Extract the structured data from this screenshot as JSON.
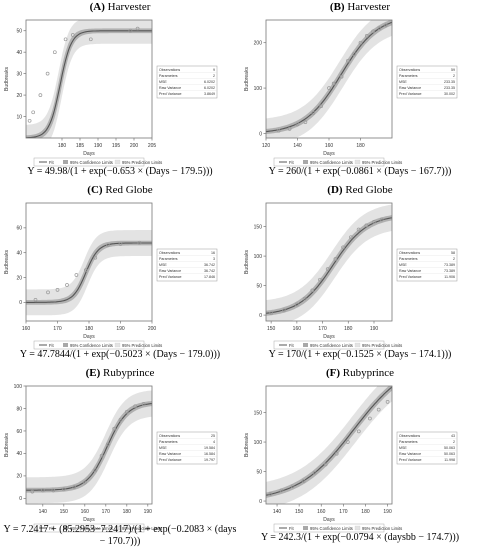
{
  "legend_labels": {
    "fit": "Fit",
    "conf": "95% Confidence Limits",
    "pred": "95% Prediction Limits"
  },
  "stats_labels": [
    "Observations",
    "Parameters",
    "MSE",
    "Raw Variance",
    "Pred Variance"
  ],
  "colors": {
    "band_pred": "#e3e3e3",
    "band_conf": "#a8a8a8",
    "fit": "#555555",
    "points": "#9a9a9a",
    "axis": "#777777"
  },
  "chart_data": [
    {
      "type": "line",
      "letter": "(A)",
      "title": "Harvester",
      "xlabel": "Days",
      "ylabel": "Budbreaks",
      "xlim": [
        170,
        205
      ],
      "ylim": [
        0,
        55
      ],
      "xticks": [
        180,
        185,
        190,
        195,
        200,
        205
      ],
      "yticks": [
        10,
        20,
        30,
        40,
        50
      ],
      "model": "logistic",
      "params": {
        "c": 0,
        "K": 49.98,
        "r": 0.653,
        "x0": 179.5
      },
      "points": [
        [
          171,
          8
        ],
        [
          172,
          12
        ],
        [
          174,
          20
        ],
        [
          176,
          30
        ],
        [
          178,
          40
        ],
        [
          181,
          46
        ],
        [
          183,
          48
        ],
        [
          188,
          46
        ],
        [
          199,
          50
        ],
        [
          201,
          51
        ]
      ],
      "stats": [
        "9",
        "2",
        "6.0202",
        "6.0202",
        "3.8649"
      ],
      "equation": "Y = 49.98/(1 + exp(−0.653 × (Days − 179.5)))"
    },
    {
      "type": "line",
      "letter": "(B)",
      "title": "Harvester",
      "xlabel": "Days",
      "ylabel": "Budbreaks",
      "xlim": [
        120,
        200
      ],
      "ylim": [
        -10,
        250
      ],
      "xticks": [
        120,
        140,
        160,
        180
      ],
      "yticks": [
        0,
        100,
        200
      ],
      "model": "logistic",
      "params": {
        "c": 0,
        "K": 260,
        "r": 0.0861,
        "x0": 167.7
      },
      "points": [
        [
          128,
          6
        ],
        [
          135,
          10
        ],
        [
          140,
          20
        ],
        [
          145,
          25
        ],
        [
          150,
          45
        ],
        [
          155,
          60
        ],
        [
          160,
          100
        ],
        [
          163,
          110
        ],
        [
          168,
          125
        ],
        [
          172,
          160
        ],
        [
          176,
          175
        ],
        [
          180,
          200
        ],
        [
          184,
          215
        ],
        [
          188,
          225
        ],
        [
          192,
          232
        ],
        [
          196,
          238
        ]
      ],
      "stats": [
        "59",
        "2",
        "233.35",
        "233.35",
        "30.002"
      ],
      "equation": "Y = 260/(1 + exp(−0.0861 × (Days − 167.7)))"
    },
    {
      "type": "line",
      "letter": "(C)",
      "title": "Red Globe",
      "xlabel": "Days",
      "ylabel": "Budbreaks",
      "xlim": [
        160,
        200
      ],
      "ylim": [
        -15,
        80
      ],
      "xticks": [
        160,
        170,
        180,
        190,
        200
      ],
      "yticks": [
        0,
        20,
        40,
        60
      ],
      "model": "logistic",
      "params": {
        "c": 0,
        "K": 47.7844,
        "r": 0.5023,
        "x0": 179.0
      },
      "points": [
        [
          163,
          2
        ],
        [
          167,
          8
        ],
        [
          170,
          10
        ],
        [
          173,
          14
        ],
        [
          176,
          22
        ],
        [
          179,
          26
        ],
        [
          182,
          36
        ],
        [
          186,
          46
        ],
        [
          190,
          47
        ],
        [
          196,
          48
        ]
      ],
      "stats": [
        "16",
        "3",
        "36.742",
        "36.742",
        "17.846"
      ],
      "equation": "Y = 47.7844/(1 + exp(−0.5023 × (Days − 179.0)))"
    },
    {
      "type": "line",
      "letter": "(D)",
      "title": "Red Globe",
      "xlabel": "Days",
      "ylabel": "Budbreaks",
      "xlim": [
        148,
        197
      ],
      "ylim": [
        -10,
        190
      ],
      "xticks": [
        150,
        160,
        170,
        180,
        190
      ],
      "yticks": [
        0,
        50,
        100,
        150
      ],
      "model": "logistic",
      "params": {
        "c": 0,
        "K": 170,
        "r": 0.1525,
        "x0": 174.1
      },
      "points": [
        [
          150,
          3
        ],
        [
          155,
          8
        ],
        [
          160,
          18
        ],
        [
          163,
          28
        ],
        [
          166,
          42
        ],
        [
          169,
          60
        ],
        [
          172,
          78
        ],
        [
          175,
          95
        ],
        [
          178,
          115
        ],
        [
          181,
          132
        ],
        [
          184,
          145
        ],
        [
          187,
          152
        ],
        [
          190,
          158
        ],
        [
          193,
          162
        ]
      ],
      "stats": [
        "58",
        "2",
        "73.389",
        "73.389",
        "11.906"
      ],
      "equation": "Y = 170/(1 + exp(−0.1525 × (Days − 174.1)))"
    },
    {
      "type": "line",
      "letter": "(E)",
      "title": "Rubyprince",
      "xlabel": "Days",
      "ylabel": "Budbreaks",
      "xlim": [
        132,
        192
      ],
      "ylim": [
        -5,
        100
      ],
      "xticks": [
        140,
        150,
        160,
        170,
        180,
        190
      ],
      "yticks": [
        0,
        20,
        40,
        60,
        80,
        100
      ],
      "model": "logistic",
      "params": {
        "c": 7.2417,
        "K": 85.2953,
        "r": 0.2083,
        "x0": 170.7
      },
      "points": [
        [
          135,
          6
        ],
        [
          140,
          7
        ],
        [
          145,
          7
        ],
        [
          150,
          8
        ],
        [
          155,
          10
        ],
        [
          160,
          14
        ],
        [
          165,
          25
        ],
        [
          168,
          38
        ],
        [
          171,
          48
        ],
        [
          174,
          62
        ],
        [
          177,
          70
        ],
        [
          180,
          77
        ],
        [
          184,
          82
        ],
        [
          188,
          84
        ]
      ],
      "stats": [
        "25",
        "4",
        "19.584",
        "16.584",
        "19.797"
      ],
      "equation": "Y = 7.2417 + (85.2953−7.2417)/(1 + exp(−0.2083 × (days − 170.7)))"
    },
    {
      "type": "line",
      "letter": "(F)",
      "title": "Rubyprince",
      "xlabel": "Days",
      "ylabel": "Budbreaks",
      "xlim": [
        135,
        192
      ],
      "ylim": [
        -5,
        195
      ],
      "xticks": [
        140,
        150,
        160,
        170,
        180,
        190
      ],
      "yticks": [
        0,
        50,
        100,
        150
      ],
      "model": "logistic",
      "params": {
        "c": 0,
        "K": 242.3,
        "r": 0.0794,
        "x0": 174.7
      },
      "points": [
        [
          137,
          12
        ],
        [
          142,
          18
        ],
        [
          147,
          25
        ],
        [
          152,
          34
        ],
        [
          157,
          48
        ],
        [
          162,
          62
        ],
        [
          167,
          80
        ],
        [
          172,
          100
        ],
        [
          177,
          118
        ],
        [
          182,
          140
        ],
        [
          186,
          155
        ],
        [
          190,
          168
        ]
      ],
      "stats": [
        "43",
        "2",
        "50.063",
        "50.063",
        "11.998"
      ],
      "equation": "Y = 242.3/(1 + exp(−0.0794 × (daysbb − 174.7)))"
    }
  ]
}
